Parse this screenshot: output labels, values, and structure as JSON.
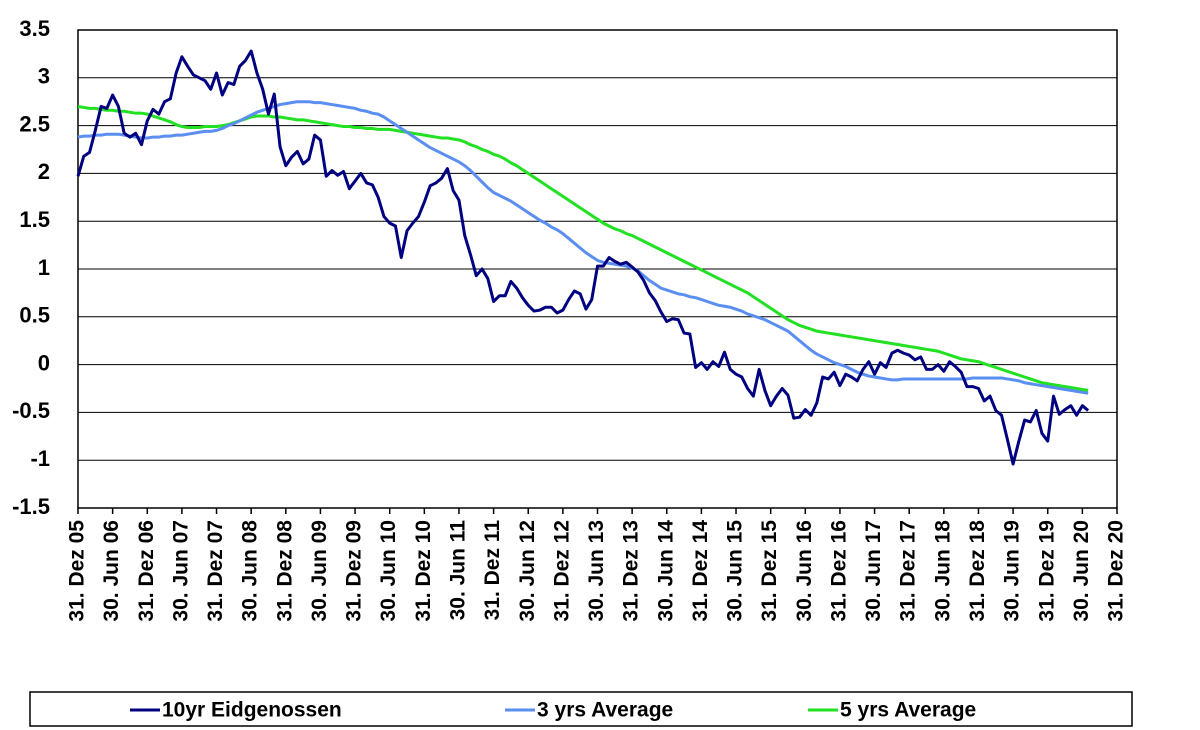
{
  "chart_data": {
    "type": "line",
    "categories": [
      "31. Dez 05",
      null,
      null,
      null,
      null,
      null,
      "30. Jun 06",
      null,
      null,
      null,
      null,
      null,
      "31. Dez 06",
      null,
      null,
      null,
      null,
      null,
      "30. Jun 07",
      null,
      null,
      null,
      null,
      null,
      "31. Dez 07",
      null,
      null,
      null,
      null,
      null,
      "30. Jun 08",
      null,
      null,
      null,
      null,
      null,
      "31. Dez 08",
      null,
      null,
      null,
      null,
      null,
      "30. Jun 09",
      null,
      null,
      null,
      null,
      null,
      "31. Dez 09",
      null,
      null,
      null,
      null,
      null,
      "30. Jun 10",
      null,
      null,
      null,
      null,
      null,
      "31. Dez 10",
      null,
      null,
      null,
      null,
      null,
      "30. Jun 11",
      null,
      null,
      null,
      null,
      null,
      "31. Dez 11",
      null,
      null,
      null,
      null,
      null,
      "30. Jun 12",
      null,
      null,
      null,
      null,
      null,
      "31. Dez 12",
      null,
      null,
      null,
      null,
      null,
      "30. Jun 13",
      null,
      null,
      null,
      null,
      null,
      "31. Dez 13",
      null,
      null,
      null,
      null,
      null,
      "30. Jun 14",
      null,
      null,
      null,
      null,
      null,
      "31. Dez 14",
      null,
      null,
      null,
      null,
      null,
      "30. Jun 15",
      null,
      null,
      null,
      null,
      null,
      "31. Dez 15",
      null,
      null,
      null,
      null,
      null,
      "30. Jun 16",
      null,
      null,
      null,
      null,
      null,
      "31. Dez 16",
      null,
      null,
      null,
      null,
      null,
      "30. Jun 17",
      null,
      null,
      null,
      null,
      null,
      "31. Dez 17",
      null,
      null,
      null,
      null,
      null,
      "30. Jun 18",
      null,
      null,
      null,
      null,
      null,
      "31. Dez 18",
      null,
      null,
      null,
      null,
      null,
      "30. Jun 19",
      null,
      null,
      null,
      null,
      null,
      "31. Dez 19",
      null,
      null,
      null,
      null,
      null,
      "30. Jun 20",
      null,
      null,
      null,
      null,
      null,
      "31. Dez 20"
    ],
    "series": [
      {
        "name": "10yr Eidgenossen",
        "color": "#000080",
        "values": [
          1.97,
          2.18,
          2.22,
          2.45,
          2.7,
          2.68,
          2.82,
          2.7,
          2.42,
          2.38,
          2.42,
          2.3,
          2.55,
          2.67,
          2.62,
          2.75,
          2.78,
          3.05,
          3.22,
          3.12,
          3.03,
          3.0,
          2.97,
          2.88,
          3.05,
          2.82,
          2.95,
          2.93,
          3.12,
          3.18,
          3.28,
          3.05,
          2.88,
          2.62,
          2.83,
          2.28,
          2.08,
          2.17,
          2.23,
          2.1,
          2.15,
          2.4,
          2.35,
          1.97,
          2.03,
          1.98,
          2.02,
          1.84,
          1.92,
          2.0,
          1.9,
          1.88,
          1.75,
          1.55,
          1.48,
          1.45,
          1.12,
          1.4,
          1.48,
          1.55,
          1.7,
          1.87,
          1.9,
          1.95,
          2.05,
          1.82,
          1.72,
          1.35,
          1.15,
          0.93,
          1.0,
          0.9,
          0.66,
          0.72,
          0.72,
          0.87,
          0.8,
          0.7,
          0.62,
          0.56,
          0.57,
          0.6,
          0.6,
          0.54,
          0.57,
          0.68,
          0.77,
          0.74,
          0.58,
          0.68,
          1.03,
          1.03,
          1.12,
          1.08,
          1.05,
          1.07,
          1.02,
          0.97,
          0.88,
          0.75,
          0.67,
          0.55,
          0.45,
          0.48,
          0.47,
          0.33,
          0.32,
          -0.03,
          0.02,
          -0.05,
          0.03,
          -0.02,
          0.13,
          -0.05,
          -0.1,
          -0.13,
          -0.25,
          -0.33,
          -0.05,
          -0.27,
          -0.43,
          -0.33,
          -0.25,
          -0.32,
          -0.56,
          -0.55,
          -0.47,
          -0.53,
          -0.4,
          -0.13,
          -0.15,
          -0.08,
          -0.22,
          -0.1,
          -0.13,
          -0.17,
          -0.05,
          0.03,
          -0.1,
          0.02,
          -0.03,
          0.12,
          0.15,
          0.12,
          0.1,
          0.05,
          0.08,
          -0.05,
          -0.05,
          0.0,
          -0.07,
          0.03,
          -0.02,
          -0.08,
          -0.23,
          -0.23,
          -0.25,
          -0.38,
          -0.33,
          -0.48,
          -0.53,
          -0.78,
          -1.04,
          -0.8,
          -0.58,
          -0.6,
          -0.48,
          -0.72,
          -0.8,
          -0.33,
          -0.52,
          -0.47,
          -0.43,
          -0.53,
          -0.43,
          -0.48,
          null,
          null,
          null,
          null,
          null
        ]
      },
      {
        "name": "3 yrs Average",
        "color": "#5a8ef0",
        "values": [
          2.38,
          2.39,
          2.39,
          2.4,
          2.4,
          2.41,
          2.41,
          2.41,
          2.4,
          2.39,
          2.38,
          2.37,
          2.37,
          2.38,
          2.38,
          2.39,
          2.39,
          2.4,
          2.4,
          2.41,
          2.42,
          2.43,
          2.44,
          2.44,
          2.45,
          2.47,
          2.5,
          2.52,
          2.55,
          2.58,
          2.61,
          2.64,
          2.66,
          2.68,
          2.7,
          2.72,
          2.73,
          2.74,
          2.75,
          2.75,
          2.75,
          2.74,
          2.74,
          2.73,
          2.72,
          2.71,
          2.7,
          2.69,
          2.68,
          2.66,
          2.65,
          2.63,
          2.62,
          2.59,
          2.55,
          2.51,
          2.47,
          2.43,
          2.39,
          2.35,
          2.31,
          2.27,
          2.24,
          2.21,
          2.18,
          2.15,
          2.12,
          2.08,
          2.03,
          1.97,
          1.91,
          1.85,
          1.8,
          1.77,
          1.74,
          1.71,
          1.67,
          1.63,
          1.59,
          1.55,
          1.51,
          1.48,
          1.44,
          1.41,
          1.37,
          1.32,
          1.27,
          1.22,
          1.17,
          1.13,
          1.09,
          1.07,
          1.06,
          1.05,
          1.04,
          1.03,
          1.01,
          0.98,
          0.93,
          0.88,
          0.84,
          0.8,
          0.78,
          0.76,
          0.74,
          0.73,
          0.71,
          0.7,
          0.68,
          0.66,
          0.64,
          0.62,
          0.61,
          0.6,
          0.58,
          0.56,
          0.53,
          0.51,
          0.49,
          0.47,
          0.44,
          0.41,
          0.38,
          0.35,
          0.3,
          0.25,
          0.2,
          0.15,
          0.11,
          0.08,
          0.05,
          0.02,
          0.0,
          -0.02,
          -0.05,
          -0.08,
          -0.1,
          -0.12,
          -0.13,
          -0.14,
          -0.15,
          -0.16,
          -0.16,
          -0.15,
          -0.15,
          -0.15,
          -0.15,
          -0.15,
          -0.15,
          -0.15,
          -0.15,
          -0.15,
          -0.15,
          -0.15,
          -0.15,
          -0.14,
          -0.14,
          -0.14,
          -0.14,
          -0.14,
          -0.14,
          -0.15,
          -0.16,
          -0.17,
          -0.19,
          -0.2,
          -0.21,
          -0.22,
          -0.23,
          -0.24,
          -0.25,
          -0.26,
          -0.27,
          -0.28,
          -0.29,
          -0.3,
          null,
          null,
          null,
          null,
          null
        ]
      },
      {
        "name": "5 yrs Average",
        "color": "#22e022",
        "values": [
          2.7,
          2.69,
          2.68,
          2.68,
          2.67,
          2.66,
          2.66,
          2.65,
          2.65,
          2.64,
          2.63,
          2.63,
          2.62,
          2.6,
          2.58,
          2.56,
          2.54,
          2.51,
          2.49,
          2.48,
          2.48,
          2.48,
          2.49,
          2.49,
          2.49,
          2.5,
          2.51,
          2.53,
          2.55,
          2.57,
          2.59,
          2.6,
          2.6,
          2.6,
          2.59,
          2.59,
          2.58,
          2.57,
          2.56,
          2.56,
          2.55,
          2.54,
          2.53,
          2.52,
          2.51,
          2.5,
          2.49,
          2.49,
          2.48,
          2.48,
          2.47,
          2.47,
          2.46,
          2.46,
          2.46,
          2.45,
          2.44,
          2.43,
          2.42,
          2.41,
          2.4,
          2.39,
          2.38,
          2.37,
          2.37,
          2.36,
          2.35,
          2.33,
          2.3,
          2.28,
          2.25,
          2.23,
          2.2,
          2.18,
          2.15,
          2.11,
          2.08,
          2.04,
          2.0,
          1.96,
          1.92,
          1.88,
          1.84,
          1.8,
          1.76,
          1.72,
          1.68,
          1.64,
          1.6,
          1.56,
          1.52,
          1.48,
          1.45,
          1.42,
          1.4,
          1.37,
          1.35,
          1.32,
          1.29,
          1.26,
          1.23,
          1.2,
          1.17,
          1.14,
          1.11,
          1.08,
          1.05,
          1.02,
          0.99,
          0.96,
          0.93,
          0.9,
          0.87,
          0.84,
          0.81,
          0.78,
          0.75,
          0.71,
          0.67,
          0.63,
          0.59,
          0.55,
          0.51,
          0.47,
          0.44,
          0.41,
          0.39,
          0.37,
          0.35,
          0.34,
          0.33,
          0.32,
          0.31,
          0.3,
          0.29,
          0.28,
          0.27,
          0.26,
          0.25,
          0.24,
          0.23,
          0.22,
          0.21,
          0.2,
          0.19,
          0.18,
          0.17,
          0.16,
          0.15,
          0.14,
          0.12,
          0.1,
          0.08,
          0.06,
          0.05,
          0.04,
          0.03,
          0.01,
          -0.01,
          -0.03,
          -0.05,
          -0.07,
          -0.09,
          -0.11,
          -0.13,
          -0.15,
          -0.17,
          -0.19,
          -0.2,
          -0.21,
          -0.22,
          -0.23,
          -0.24,
          -0.25,
          -0.26,
          -0.27,
          null,
          null,
          null,
          null,
          null
        ]
      }
    ],
    "ylim": [
      -1.5,
      3.5
    ],
    "yticks": [
      3.5,
      3,
      2.5,
      2,
      1.5,
      1,
      0.5,
      0,
      -0.5,
      -1,
      -1.5
    ],
    "grid": true
  }
}
